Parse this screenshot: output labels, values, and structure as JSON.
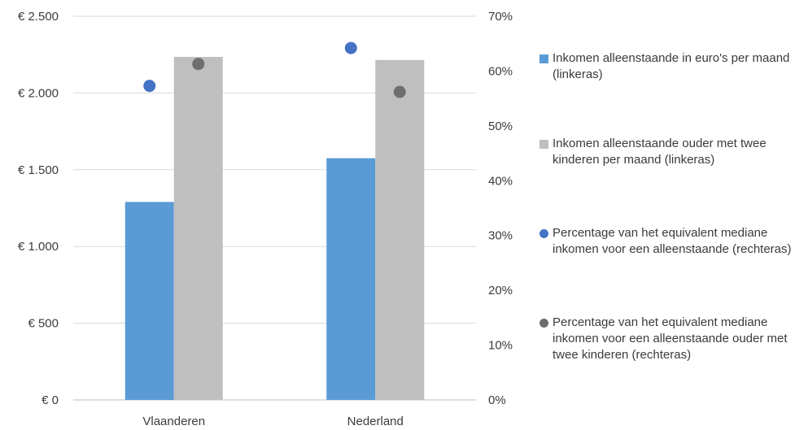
{
  "chart_data": {
    "type": "bar",
    "categories": [
      "Vlaanderen",
      "Nederland"
    ],
    "series": [
      {
        "name": "Inkomen alleenstaande in euro's per maand (linkeras)",
        "kind": "bar",
        "axis": "left",
        "color": "#5b9bd5",
        "values": [
          1290,
          1575
        ]
      },
      {
        "name": "Inkomen alleenstaande ouder met twee kinderen per maand (linkeras)",
        "kind": "bar",
        "axis": "left",
        "color": "#bfbfbf",
        "values": [
          2235,
          2215
        ]
      },
      {
        "name": "Percentage van het equivalent mediane inkomen voor een alleenstaande (rechteras)",
        "kind": "scatter",
        "axis": "right",
        "color": "#4472c4",
        "values": [
          57.3,
          64.2
        ]
      },
      {
        "name": "Percentage van het equivalent mediane inkomen voor een alleenstaande ouder met twee kinderen (rechteras)",
        "kind": "scatter",
        "axis": "right",
        "color": "#6e6e6e",
        "values": [
          61.3,
          56.2
        ]
      }
    ],
    "y_left": {
      "range": [
        0,
        2500
      ],
      "ticks": [
        0,
        500,
        1000,
        1500,
        2000,
        2500
      ],
      "tick_labels": [
        "€ 0",
        "€ 500",
        "€ 1.000",
        "€ 1.500",
        "€ 2.000",
        "€ 2.500"
      ]
    },
    "y_right": {
      "range": [
        0,
        70
      ],
      "ticks": [
        0,
        10,
        20,
        30,
        40,
        50,
        60,
        70
      ],
      "tick_labels": [
        "0%",
        "10%",
        "20%",
        "30%",
        "40%",
        "50%",
        "60%",
        "70%"
      ]
    },
    "grid": true,
    "legend_position": "right"
  }
}
